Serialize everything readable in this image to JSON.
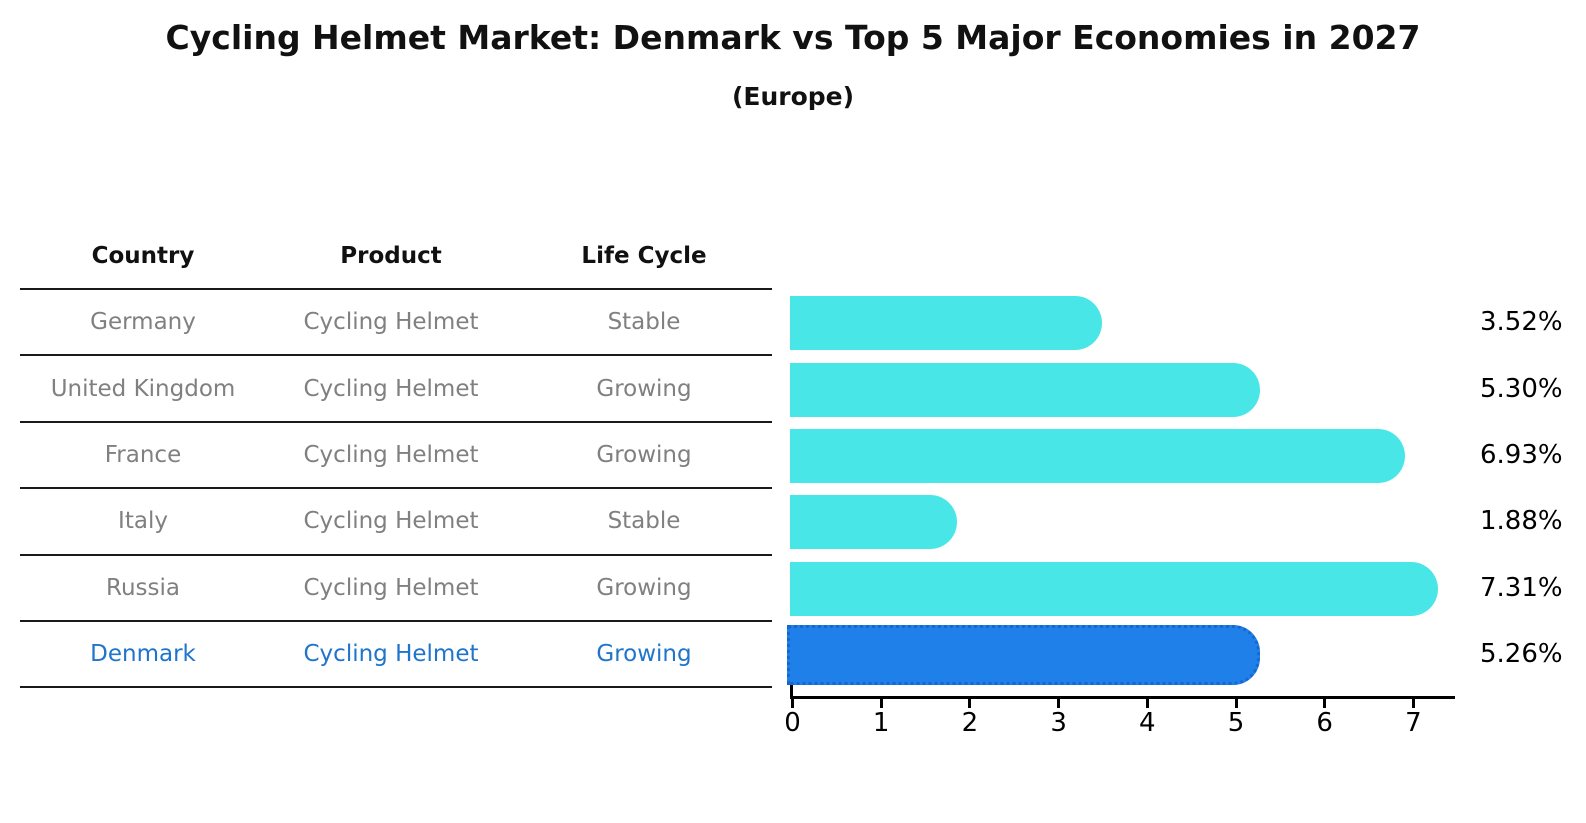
{
  "title": "Cycling Helmet Market: Denmark vs Top 5 Major Economies in 2027",
  "subtitle": "(Europe)",
  "table": {
    "headers": [
      "Country",
      "Product",
      "Life Cycle"
    ],
    "rows": [
      {
        "country": "Germany",
        "product": "Cycling Helmet",
        "life_cycle": "Stable",
        "highlight": false
      },
      {
        "country": "United Kingdom",
        "product": "Cycling Helmet",
        "life_cycle": "Growing",
        "highlight": false
      },
      {
        "country": "France",
        "product": "Cycling Helmet",
        "life_cycle": "Growing",
        "highlight": false
      },
      {
        "country": "Italy",
        "product": "Cycling Helmet",
        "life_cycle": "Stable",
        "highlight": false
      },
      {
        "country": "Russia",
        "product": "Cycling Helmet",
        "life_cycle": "Growing",
        "highlight": true
      }
    ],
    "highlight_row": {
      "country": "Denmark",
      "product": "Cycling Helmet",
      "life_cycle": "Growing"
    }
  },
  "chart_data": {
    "type": "bar",
    "orientation": "horizontal",
    "title": "Cycling Helmet Market: Denmark vs Top 5 Major Economies in 2027",
    "subtitle": "(Europe)",
    "categories": [
      "Germany",
      "United Kingdom",
      "France",
      "Italy",
      "Russia",
      "Denmark"
    ],
    "values": [
      3.52,
      5.3,
      6.93,
      1.88,
      7.31,
      5.26
    ],
    "value_labels": [
      "3.52%",
      "5.30%",
      "6.93%",
      "1.88%",
      "7.31%",
      "5.26%"
    ],
    "highlight_index": 5,
    "x_ticks": [
      "0",
      "1",
      "2",
      "3",
      "4",
      "5",
      "6",
      "7"
    ],
    "xlim": [
      0,
      7.5
    ],
    "grid": false,
    "legend": false,
    "bar_color": "#48E6E6",
    "highlight_bar_color": "#1E80E8",
    "text_color_muted": "#808080",
    "highlight_text_color": "#1F74CC"
  }
}
